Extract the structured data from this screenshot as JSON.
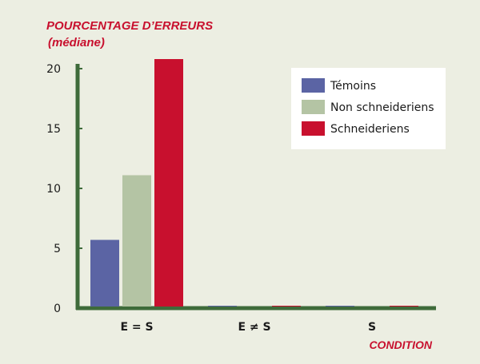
{
  "chart_data": {
    "type": "bar",
    "title": "",
    "ylabel": "POURCENTAGE D’ERREURS",
    "ylabel_sub": "(médiane)",
    "xlabel": "CONDITION",
    "categories": [
      "E = S",
      "E ≠ S",
      "S"
    ],
    "series": [
      {
        "name": "Témoins",
        "color": "#5b64a4",
        "values": [
          5.7,
          0.2,
          0.2
        ]
      },
      {
        "name": "Non schneideriens",
        "color": "#b4c4a4",
        "values": [
          11.1,
          0.1,
          0.1
        ]
      },
      {
        "name": "Schneideriens",
        "color": "#c8102e",
        "values": [
          20.8,
          0.2,
          0.2
        ]
      }
    ],
    "yticks": [
      0,
      5,
      10,
      15,
      20
    ],
    "ylim": [
      0,
      21.5
    ],
    "grid": false,
    "legend": "top-right",
    "axis_color": "#3e6b3a"
  }
}
